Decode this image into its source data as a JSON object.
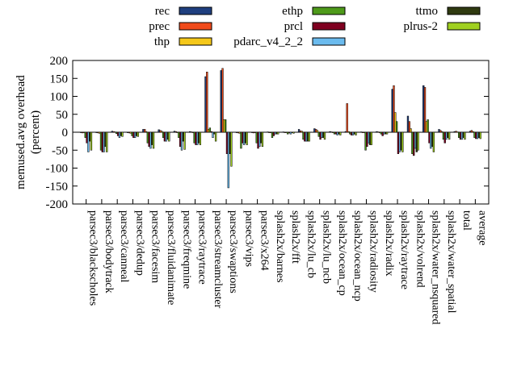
{
  "chart_data": {
    "type": "bar",
    "ylabel": "memused.avg overhead\n(percent)",
    "ylim": [
      -200,
      200
    ],
    "yticks": [
      200,
      150,
      100,
      50,
      0,
      -50,
      -100,
      -150,
      -200
    ],
    "legend_position": "top",
    "categories": [
      "parsec3/blackscholes",
      "parsec3/bodytrack",
      "parsec3/canneal",
      "parsec3/dedup",
      "parsec3/facesim",
      "parsec3/fluidanimate",
      "parsec3/freqmine",
      "parsec3/raytrace",
      "parsec3/streamcluster",
      "parsec3/swaptions",
      "parsec3/vips",
      "parsec3/x264",
      "splash2x/barnes",
      "splash2x/fft",
      "splash2x/lu_cb",
      "splash2x/lu_ncb",
      "splash2x/ocean_cp",
      "splash2x/ocean_ncp",
      "splash2x/radiosity",
      "splash2x/radix",
      "splash2x/raytrace",
      "splash2x/volrend",
      "splash2x/water_nsquared",
      "splash2x/water_spatial",
      "total",
      "average"
    ],
    "series": [
      {
        "name": "rec",
        "color": "#1f3f7f",
        "values": [
          -1,
          -1,
          3,
          -1,
          8,
          7,
          3,
          2,
          155,
          172,
          -1,
          -1,
          1,
          1,
          8,
          10,
          2,
          2,
          1,
          2,
          120,
          45,
          130,
          8,
          2,
          3
        ]
      },
      {
        "name": "prec",
        "color": "#f04a1a",
        "values": [
          -2,
          -2,
          2,
          -2,
          8,
          5,
          2,
          1,
          168,
          178,
          -2,
          -2,
          0,
          0,
          4,
          8,
          1,
          80,
          0,
          1,
          130,
          30,
          125,
          5,
          3,
          5
        ]
      },
      {
        "name": "thp",
        "color": "#f5c81a",
        "values": [
          -1,
          -3,
          1,
          -3,
          2,
          3,
          0,
          0,
          8,
          35,
          -3,
          -1,
          -1,
          0,
          3,
          5,
          0,
          2,
          -1,
          0,
          55,
          10,
          30,
          2,
          1,
          2
        ]
      },
      {
        "name": "ethp",
        "color": "#4e9a1a",
        "values": [
          -15,
          -50,
          -4,
          -10,
          -30,
          -15,
          -15,
          -30,
          12,
          35,
          -45,
          -30,
          -15,
          -5,
          -20,
          -12,
          -5,
          -5,
          -50,
          -5,
          30,
          -60,
          35,
          -20,
          -15,
          -15
        ]
      },
      {
        "name": "prcl",
        "color": "#7f0020",
        "values": [
          -30,
          -55,
          -10,
          -15,
          -40,
          -25,
          -40,
          -35,
          2,
          -60,
          -30,
          -45,
          -10,
          -2,
          -25,
          -20,
          -5,
          -8,
          -40,
          -10,
          -60,
          -65,
          -30,
          -30,
          -20,
          -18
        ]
      },
      {
        "name": "pdarc_v4_2_2",
        "color": "#6bbbee",
        "values": [
          -55,
          -55,
          -15,
          -15,
          -45,
          -25,
          -50,
          -35,
          -15,
          -155,
          -35,
          -40,
          -5,
          -5,
          -25,
          -15,
          -8,
          -8,
          -30,
          -5,
          -55,
          -45,
          -45,
          -20,
          -20,
          -18
        ]
      },
      {
        "name": "ttmo",
        "color": "#2f3a10",
        "values": [
          -25,
          -40,
          -10,
          -10,
          -35,
          -20,
          -25,
          -30,
          -5,
          -60,
          -30,
          -30,
          -5,
          0,
          -25,
          -15,
          -5,
          -5,
          -35,
          -5,
          -50,
          -55,
          -40,
          -15,
          -15,
          -15
        ]
      },
      {
        "name": "plrus-2",
        "color": "#a0d020",
        "values": [
          -50,
          -55,
          -12,
          -12,
          -45,
          -25,
          -48,
          -35,
          -25,
          -95,
          -35,
          -40,
          -5,
          -3,
          -25,
          -20,
          -8,
          -8,
          -35,
          -5,
          -55,
          -50,
          -55,
          -20,
          -20,
          -18
        ]
      }
    ]
  }
}
